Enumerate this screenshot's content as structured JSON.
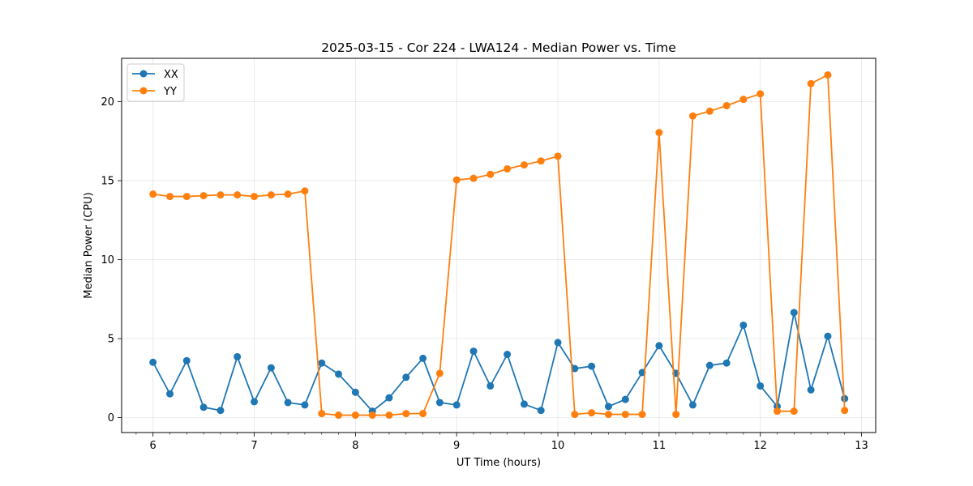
{
  "chart_data": {
    "type": "line",
    "title": "2025-03-15 - Cor 224 - LWA124 - Median Power vs. Time",
    "xlabel": "UT Time (hours)",
    "ylabel": "Median Power (CPU)",
    "xlim": [
      5.69,
      13.14
    ],
    "ylim": [
      -0.95,
      22.75
    ],
    "xticks": [
      6,
      7,
      8,
      9,
      10,
      11,
      12,
      13
    ],
    "xticklabels": [
      "6",
      "7",
      "8",
      "9",
      "10",
      "11",
      "12",
      "13"
    ],
    "yticks": [
      0,
      5,
      10,
      15,
      20
    ],
    "yticklabels": [
      "0",
      "5",
      "10",
      "15",
      "20"
    ],
    "grid": true,
    "legend": "top-left",
    "x": [
      6.0,
      6.167,
      6.333,
      6.5,
      6.667,
      6.833,
      7.0,
      7.167,
      7.333,
      7.5,
      7.667,
      7.833,
      8.0,
      8.167,
      8.333,
      8.5,
      8.667,
      8.833,
      9.0,
      9.167,
      9.333,
      9.5,
      9.667,
      9.833,
      10.0,
      10.167,
      10.333,
      10.5,
      10.667,
      10.833,
      11.0,
      11.167,
      11.333,
      11.5,
      11.667,
      11.833,
      12.0,
      12.167,
      12.333,
      12.5,
      12.667,
      12.833
    ],
    "series": [
      {
        "name": "XX",
        "color": "#1f77b4",
        "values": [
          3.5,
          1.5,
          3.6,
          0.65,
          0.45,
          3.85,
          1.0,
          3.15,
          0.95,
          0.8,
          3.45,
          2.75,
          1.6,
          0.4,
          1.25,
          2.55,
          3.75,
          0.95,
          0.8,
          4.2,
          2.0,
          4.0,
          0.85,
          0.45,
          4.75,
          3.1,
          3.25,
          0.7,
          1.15,
          2.85,
          4.55,
          2.8,
          0.8,
          3.3,
          3.45,
          5.85,
          2.0,
          0.7,
          6.65,
          1.75,
          5.15,
          1.2
        ]
      },
      {
        "name": "YY",
        "color": "#ff7f0e",
        "values": [
          14.15,
          14.0,
          14.0,
          14.05,
          14.1,
          14.1,
          14.0,
          14.1,
          14.15,
          14.35,
          0.25,
          0.15,
          0.15,
          0.15,
          0.15,
          0.25,
          0.25,
          2.8,
          15.05,
          15.15,
          15.4,
          15.75,
          16.0,
          16.25,
          16.55,
          0.2,
          0.3,
          0.2,
          0.2,
          0.2,
          18.05,
          0.2,
          19.1,
          19.4,
          19.75,
          20.15,
          20.5,
          0.4,
          0.4,
          21.15,
          21.7,
          0.45
        ]
      }
    ]
  }
}
